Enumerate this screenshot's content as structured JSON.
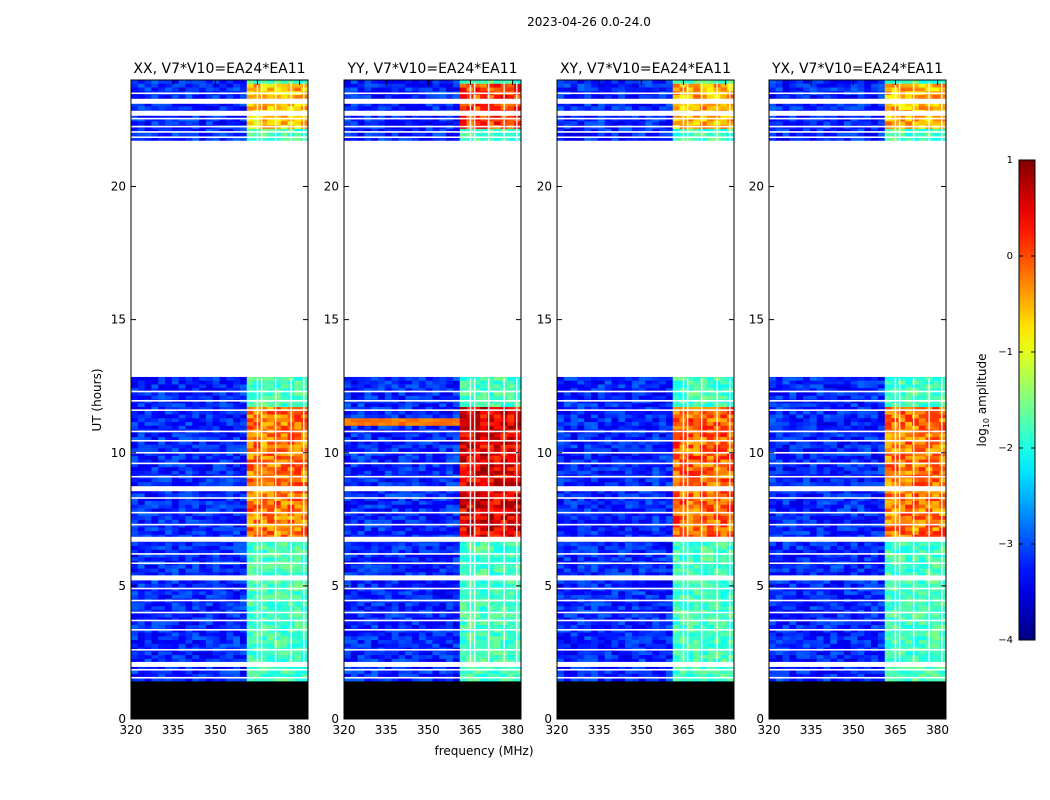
{
  "figure": {
    "suptitle": "2023-04-26 0.0-24.0",
    "xlabel": "frequency (MHz)",
    "ylabel": "UT (hours)"
  },
  "colorbar": {
    "label": "log10 amplitude",
    "label_base": "log",
    "label_sub": "10",
    "label_rest": " amplitude",
    "range": [
      -4,
      1
    ],
    "ticks": [
      -4,
      -3,
      -2,
      -1,
      0,
      1
    ],
    "tick_labels": [
      "−4",
      "−3",
      "−2",
      "−1",
      "0",
      "1"
    ],
    "colormap": "jet",
    "colors": [
      "#00007f",
      "#0000ff",
      "#007fff",
      "#00ffff",
      "#7fff7f",
      "#ffff00",
      "#ff7f00",
      "#ff0000",
      "#7f0000"
    ]
  },
  "chart_data": {
    "type": "heatmap",
    "x_range": [
      320,
      383
    ],
    "y_range": [
      0,
      24
    ],
    "x_ticks": [
      320,
      335,
      350,
      365,
      380
    ],
    "x_tick_labels": [
      "320",
      "335",
      "350",
      "365",
      "380"
    ],
    "y_ticks": [
      0,
      5,
      10,
      15,
      20
    ],
    "y_tick_labels": [
      "0",
      "5",
      "10",
      "15",
      "20"
    ],
    "background_level": -3.2,
    "no_data_blocks": [
      {
        "from": 12.8,
        "to": 21.7,
        "kind": "missing"
      },
      {
        "from": 0.0,
        "to": 1.4,
        "kind": "flagged"
      }
    ],
    "flagged_time_gaps": [
      2.05,
      5.3,
      6.75,
      8.65,
      22.75,
      23.2
    ],
    "flagged_time_lines": [
      1.55,
      1.85,
      2.6,
      3.35,
      3.7,
      4.0,
      4.45,
      4.9,
      5.85,
      6.2,
      7.3,
      7.75,
      8.3,
      9.1,
      9.6,
      10.0,
      10.45,
      10.8,
      11.6,
      11.95,
      12.3,
      21.85,
      22.05,
      22.25,
      22.55,
      23.5
    ],
    "rfi_channels_mhz": [
      365.0,
      366.5,
      371.5,
      377.0,
      381.5
    ],
    "rfi_band_mhz": [
      361,
      382.5
    ],
    "panels": [
      {
        "title": "XX, V7*V10=EA24*EA11",
        "pol": "XX",
        "bursts": [
          {
            "t0": 6.8,
            "t1": 11.7,
            "level": -0.2
          },
          {
            "t0": 22.2,
            "t1": 23.8,
            "level": -0.6
          }
        ],
        "broadband_events": []
      },
      {
        "title": "YY, V7*V10=EA24*EA11",
        "pol": "YY",
        "bursts": [
          {
            "t0": 6.8,
            "t1": 11.7,
            "level": 0.5
          },
          {
            "t0": 22.2,
            "t1": 23.8,
            "level": 0.1
          }
        ],
        "broadband_events": [
          {
            "t0": 11.0,
            "t1": 11.35,
            "level": 0.2
          }
        ]
      },
      {
        "title": "XY, V7*V10=EA24*EA11",
        "pol": "XY",
        "bursts": [
          {
            "t0": 6.8,
            "t1": 11.7,
            "level": -0.1
          },
          {
            "t0": 22.2,
            "t1": 23.8,
            "level": -0.5
          }
        ],
        "broadband_events": []
      },
      {
        "title": "YX, V7*V10=EA24*EA11",
        "pol": "YX",
        "bursts": [
          {
            "t0": 6.8,
            "t1": 11.7,
            "level": -0.2
          },
          {
            "t0": 22.2,
            "t1": 23.8,
            "level": -0.5
          }
        ],
        "broadband_events": []
      }
    ]
  }
}
